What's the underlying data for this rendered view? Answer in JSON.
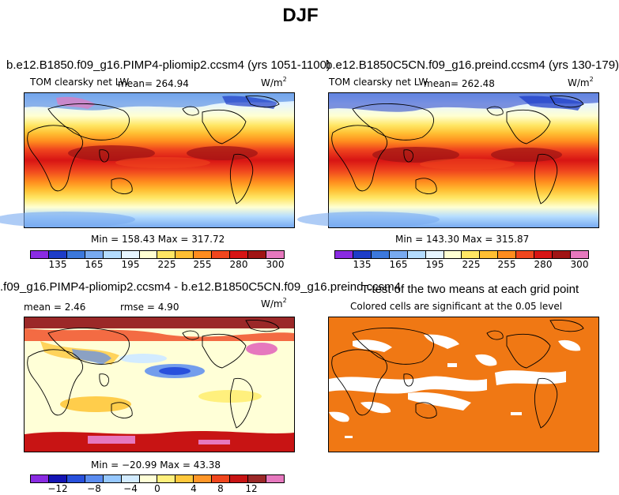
{
  "page_title": "DJF",
  "panels": {
    "top_left": {
      "title": "b.e12.B1850.f09_g16.PIMP4-pliomip2.ccsm4 (yrs 1051-1100)",
      "variable": "TOM clearsky net LW",
      "mean_text": "mean= 264.94",
      "units_base": "W/m",
      "units_exp": "2",
      "minmax": "Min = 158.43 Max = 317.72",
      "colorbar_ticks": [
        "135",
        "165",
        "195",
        "225",
        "255",
        "280",
        "300"
      ]
    },
    "top_right": {
      "title": "b.e12.B1850C5CN.f09_g16.preind.ccsm4 (yrs 130-179)",
      "variable": "TOM clearsky net LW",
      "mean_text": "mean= 262.48",
      "units_base": "W/m",
      "units_exp": "2",
      "minmax": "Min = 143.30 Max = 315.87",
      "colorbar_ticks": [
        "135",
        "165",
        "195",
        "225",
        "255",
        "280",
        "300"
      ]
    },
    "bottom_left": {
      "title": ".f09_g16.PIMP4-pliomip2.ccsm4 - b.e12.B1850C5CN.f09_g16.preind.ccsm4",
      "mean_text": "mean =    2.46",
      "rmse_text": "rmse =    4.90",
      "units_base": "W/m",
      "units_exp": "2",
      "minmax": "Min = −20.99 Max =   43.38",
      "colorbar_ticks": [
        "−12",
        "−8",
        "−4",
        "0",
        "4",
        "8",
        "12"
      ]
    },
    "bottom_right": {
      "title": "T-test of the two means at each grid point",
      "subtitle": "Colored cells are significant at the 0.05 level"
    }
  },
  "chart_data": [
    {
      "type": "heatmap",
      "title": "b.e12.B1850.f09_g16.PIMP4-pliomip2.ccsm4 (yrs 1051-1100)",
      "variable": "TOM clearsky net LW",
      "units": "W/m2",
      "mean": 264.94,
      "min": 158.43,
      "max": 317.72,
      "colorbar_levels": [
        135,
        150,
        165,
        180,
        195,
        210,
        225,
        240,
        255,
        270,
        280,
        290,
        300,
        310
      ],
      "colorbar_colors": [
        "#8a2be2",
        "#1e3dc8",
        "#3c78dc",
        "#78aaf0",
        "#b4dcff",
        "#e6f5ff",
        "#ffffd2",
        "#ffe664",
        "#ffbe32",
        "#ff8c1e",
        "#f0461e",
        "#d71414",
        "#a01414",
        "#e678be"
      ],
      "latitude_bands": [
        {
          "lat": 80,
          "value": 170
        },
        {
          "lat": 60,
          "value": 190
        },
        {
          "lat": 45,
          "value": 225
        },
        {
          "lat": 35,
          "value": 250
        },
        {
          "lat": 20,
          "value": 280
        },
        {
          "lat": 0,
          "value": 300
        },
        {
          "lat": -20,
          "value": 295
        },
        {
          "lat": -35,
          "value": 270
        },
        {
          "lat": -50,
          "value": 230
        },
        {
          "lat": -65,
          "value": 200
        },
        {
          "lat": -80,
          "value": 180
        }
      ]
    },
    {
      "type": "heatmap",
      "title": "b.e12.B1850C5CN.f09_g16.preind.ccsm4 (yrs 130-179)",
      "variable": "TOM clearsky net LW",
      "units": "W/m2",
      "mean": 262.48,
      "min": 143.3,
      "max": 315.87,
      "colorbar_levels": [
        135,
        150,
        165,
        180,
        195,
        210,
        225,
        240,
        255,
        270,
        280,
        290,
        300,
        310
      ],
      "latitude_bands": [
        {
          "lat": 80,
          "value": 165
        },
        {
          "lat": 60,
          "value": 185
        },
        {
          "lat": 45,
          "value": 220
        },
        {
          "lat": 35,
          "value": 250
        },
        {
          "lat": 20,
          "value": 280
        },
        {
          "lat": 0,
          "value": 300
        },
        {
          "lat": -20,
          "value": 295
        },
        {
          "lat": -35,
          "value": 268
        },
        {
          "lat": -50,
          "value": 228
        },
        {
          "lat": -65,
          "value": 195
        },
        {
          "lat": -80,
          "value": 175
        }
      ]
    },
    {
      "type": "heatmap",
      "title": ".f09_g16.PIMP4-pliomip2.ccsm4 - b.e12.B1850C5CN.f09_g16.preind.ccsm4",
      "units": "W/m2",
      "mean": 2.46,
      "rmse": 4.9,
      "min": -20.99,
      "max": 43.38,
      "colorbar_levels": [
        -12,
        -10,
        -8,
        -6,
        -4,
        -2,
        0,
        2,
        4,
        6,
        8,
        10,
        12
      ],
      "colorbar_colors": [
        "#8a2be2",
        "#1414b4",
        "#2850dc",
        "#5a8cf0",
        "#96c8ff",
        "#d2ebff",
        "#ffffd7",
        "#fff07d",
        "#ffc83c",
        "#ff9628",
        "#f0461e",
        "#c81414",
        "#9b2828",
        "#e678be"
      ]
    },
    {
      "type": "heatmap",
      "title": "T-test of the two means at each grid point",
      "subtitle": "Colored cells are significant at the 0.05 level",
      "significant_color": "#f07814",
      "not_significant_color": "#ffffff"
    }
  ]
}
